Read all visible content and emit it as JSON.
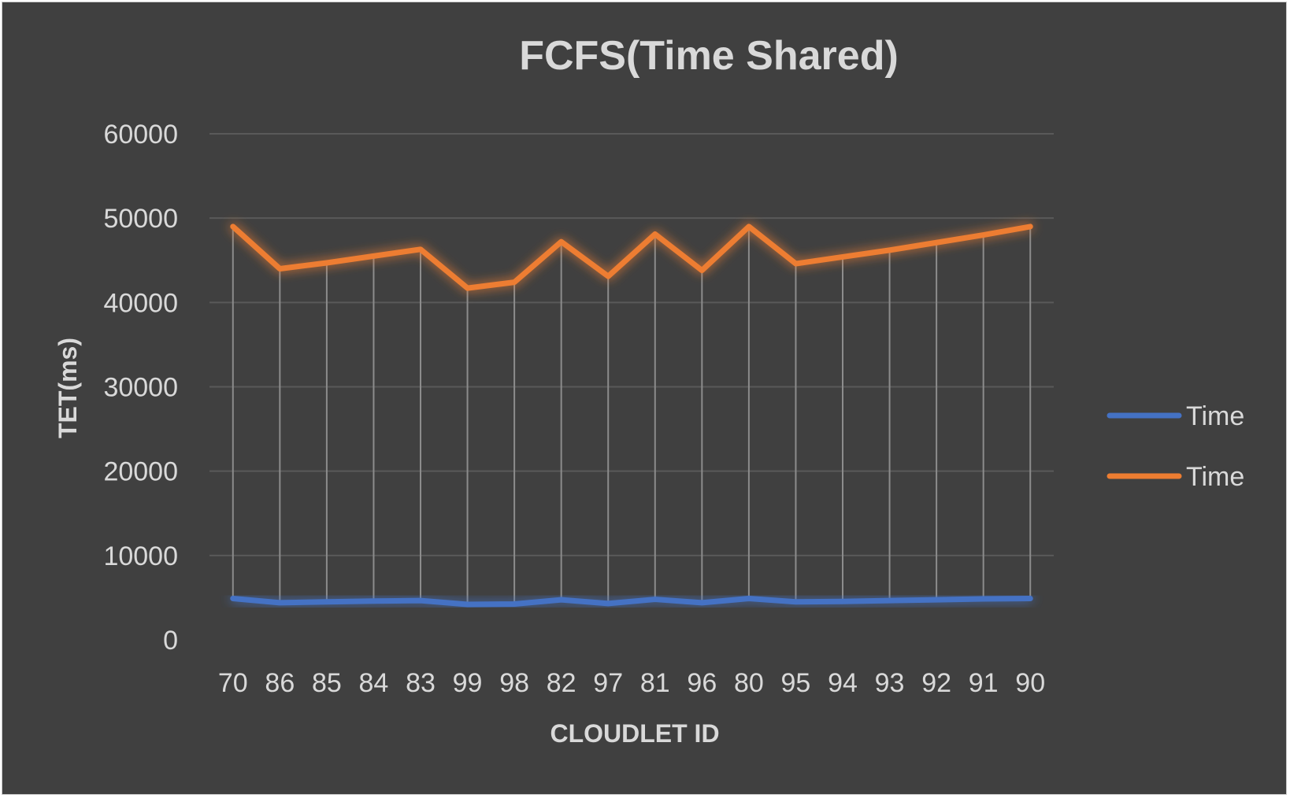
{
  "chart_data": {
    "type": "line",
    "title": "FCFS(Time Shared)",
    "xlabel": "CLOUDLET ID",
    "ylabel": "TET(ms)",
    "ylim": [
      0,
      60000
    ],
    "yticks": [
      "0",
      "10000",
      "20000",
      "30000",
      "40000",
      "50000",
      "60000"
    ],
    "grid": true,
    "drop_lines": true,
    "legend_position": "right",
    "categories": [
      "70",
      "86",
      "85",
      "84",
      "83",
      "99",
      "98",
      "82",
      "97",
      "81",
      "96",
      "80",
      "95",
      "94",
      "93",
      "92",
      "91",
      "90"
    ],
    "series": [
      {
        "name": "Time",
        "color": "#4472c4",
        "values": [
          4900,
          4400,
          4500,
          4600,
          4650,
          4200,
          4250,
          4750,
          4300,
          4800,
          4400,
          4900,
          4500,
          4550,
          4650,
          4750,
          4850,
          4900
        ]
      },
      {
        "name": "Time",
        "color": "#ed7d31",
        "values": [
          49000,
          44000,
          44700,
          45500,
          46300,
          41700,
          42400,
          47200,
          43100,
          48100,
          43800,
          49000,
          44600,
          45400,
          46200,
          47100,
          48000,
          49000
        ]
      }
    ]
  },
  "colors": {
    "background": "#404040",
    "text": "#d9d9d9",
    "grid": "#595959",
    "drop_line": "#8c8c8c"
  }
}
